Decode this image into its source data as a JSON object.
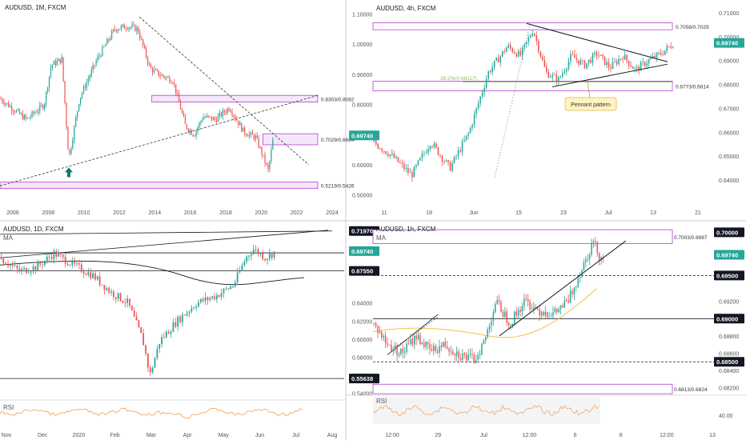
{
  "panels": {
    "monthly": {
      "title": "AUDUSD, 1M, FXCM"
    },
    "h4": {
      "title": "AUDUSD, 4h, FXCM"
    },
    "daily": {
      "title": "AUDUSD, 1D, FXCM",
      "ma_label": "MA",
      "rsi_label": "RSI"
    },
    "h1": {
      "title": "AUDUSD, 1h, FXCM",
      "ma_label": "MA",
      "rsi_label": "RSI"
    }
  },
  "colors": {
    "up": "#26a69a",
    "down": "#ef5350",
    "zone": "#b040d0",
    "zone_fill": "#f6e6fb",
    "price_badge": "#26a69a",
    "level_badge": "#131722",
    "fib": "#8bc34a",
    "ma_daily": "#131722",
    "ma_h1": "#f2c14e",
    "rsi": "#f39c4a",
    "axis_text": "#555555",
    "grid": "#eef0f3"
  },
  "chart_data": [
    {
      "type": "candlestick",
      "title": "AUDUSD, 1M, FXCM",
      "x_ticks": [
        "2006",
        "2008",
        "2010",
        "2012",
        "2014",
        "2016",
        "2018",
        "2020",
        "2022",
        "2024"
      ],
      "y_ticks": [
        "1.10000",
        "1.00000",
        "0.90000",
        "0.80000",
        "0.70000",
        "0.60000",
        "0.50000"
      ],
      "ylim": [
        0.47,
        1.12
      ],
      "zones": [
        {
          "label": "0.8303/0.8082",
          "low": 0.8082,
          "high": 0.8303,
          "x_from": 2013.6,
          "x_to": 2023.0
        },
        {
          "label": "0.7029/0.6664",
          "low": 0.6664,
          "high": 0.7029,
          "x_from": 2019.9,
          "x_to": 2023.0
        },
        {
          "label": "0.5219/0.5426",
          "low": 0.5219,
          "high": 0.5426,
          "x_from": 2005.0,
          "x_to": 2023.0
        }
      ],
      "trendlines": [
        {
          "style": "dashed",
          "from": [
            2005.0,
            0.53
          ],
          "to": [
            2023.0,
            0.83
          ]
        },
        {
          "style": "dashed",
          "from": [
            2012.9,
            1.09
          ],
          "to": [
            2022.5,
            0.6
          ]
        }
      ],
      "marker": {
        "shape": "up-arrow",
        "x": 2008.9,
        "y": 0.575
      },
      "current_price": "0.69740",
      "anchors": [
        [
          2005.0,
          0.82
        ],
        [
          2006.5,
          0.75
        ],
        [
          2007.5,
          0.8
        ],
        [
          2007.9,
          0.93
        ],
        [
          2008.5,
          0.95
        ],
        [
          2008.9,
          0.62
        ],
        [
          2009.5,
          0.82
        ],
        [
          2010.5,
          0.95
        ],
        [
          2011.5,
          1.05
        ],
        [
          2012.2,
          1.06
        ],
        [
          2012.8,
          1.05
        ],
        [
          2013.5,
          0.92
        ],
        [
          2014.0,
          0.9
        ],
        [
          2014.8,
          0.88
        ],
        [
          2015.5,
          0.73
        ],
        [
          2016.0,
          0.7
        ],
        [
          2016.5,
          0.76
        ],
        [
          2017.2,
          0.75
        ],
        [
          2018.0,
          0.79
        ],
        [
          2018.8,
          0.71
        ],
        [
          2019.5,
          0.69
        ],
        [
          2020.2,
          0.58
        ],
        [
          2020.5,
          0.6974
        ]
      ]
    },
    {
      "type": "candlestick",
      "title": "AUDUSD, 4h, FXCM",
      "x_ticks": [
        "11",
        "19",
        "Jun",
        "15",
        "23",
        "Jul",
        "13",
        "21"
      ],
      "y_ticks": [
        "0.71000",
        "0.70000",
        "0.69000",
        "0.68000",
        "0.67000",
        "0.66000",
        "0.65000",
        "0.64000"
      ],
      "ylim": [
        0.635,
        0.712
      ],
      "zones": [
        {
          "label": "0.7058/0.7029",
          "low": 0.7029,
          "high": 0.7058,
          "x_from": 0,
          "x_to": 53
        },
        {
          "label": "0.6773/0.6814",
          "low": 0.6773,
          "high": 0.6814,
          "x_from": 0,
          "x_to": 53
        }
      ],
      "fib_label": "38.2%(0.68117)",
      "fib_level": 0.68117,
      "pennant": {
        "upper": [
          [
            24,
            0.7055
          ],
          [
            46,
            0.6895
          ]
        ],
        "lower": [
          [
            28,
            0.679
          ],
          [
            46,
            0.6885
          ]
        ]
      },
      "callout": {
        "text": "Pennant pattern",
        "x": 32,
        "y": 0.677
      },
      "current_price": "0.69740",
      "anchors": [
        [
          0,
          0.656
        ],
        [
          3,
          0.65
        ],
        [
          6,
          0.642
        ],
        [
          9,
          0.656
        ],
        [
          12,
          0.645
        ],
        [
          15,
          0.66
        ],
        [
          18,
          0.685
        ],
        [
          21,
          0.696
        ],
        [
          23,
          0.692
        ],
        [
          25,
          0.703
        ],
        [
          27,
          0.685
        ],
        [
          29,
          0.682
        ],
        [
          31,
          0.692
        ],
        [
          33,
          0.688
        ],
        [
          35,
          0.693
        ],
        [
          37,
          0.687
        ],
        [
          39,
          0.692
        ],
        [
          41,
          0.686
        ],
        [
          43,
          0.69
        ],
        [
          45,
          0.693
        ],
        [
          47,
          0.6974
        ]
      ]
    },
    {
      "type": "candlestick",
      "title": "AUDUSD, 1D, FXCM",
      "x_ticks": [
        "Nov",
        "Dec",
        "2020",
        "Feb",
        "Mar",
        "Apr",
        "May",
        "Jun",
        "Jul",
        "Aug"
      ],
      "y_ticks": [
        "0.64000",
        "0.62000",
        "0.60000",
        "0.58000",
        "0.56000",
        "0.54000"
      ],
      "ylim": [
        0.537,
        0.723
      ],
      "price_badges": [
        {
          "label": "0.71970",
          "value": 0.7197,
          "kind": "level"
        },
        {
          "label": "0.69740",
          "value": 0.6974,
          "kind": "current"
        },
        {
          "label": "0.67550",
          "value": 0.6755,
          "kind": "level"
        },
        {
          "label": "0.55638",
          "value": 0.55638,
          "kind": "level"
        }
      ],
      "horizontal_levels": [
        0.7197,
        0.698,
        0.6755,
        0.55638
      ],
      "ma_label": "MA",
      "rsi_label": "RSI",
      "anchors": [
        [
          0,
          0.69
        ],
        [
          8,
          0.675
        ],
        [
          15,
          0.68
        ],
        [
          22,
          0.695
        ],
        [
          30,
          0.682
        ],
        [
          38,
          0.67
        ],
        [
          45,
          0.652
        ],
        [
          52,
          0.64
        ],
        [
          58,
          0.6
        ],
        [
          61,
          0.56
        ],
        [
          65,
          0.598
        ],
        [
          72,
          0.62
        ],
        [
          80,
          0.64
        ],
        [
          88,
          0.648
        ],
        [
          95,
          0.66
        ],
        [
          100,
          0.69
        ],
        [
          103,
          0.7
        ],
        [
          108,
          0.69
        ],
        [
          112,
          0.697
        ]
      ]
    },
    {
      "type": "candlestick",
      "title": "AUDUSD, 1h, FXCM",
      "x_ticks": [
        "12:00",
        "29",
        "Jul",
        "12:00",
        "6",
        "8",
        "12:00",
        "13"
      ],
      "y_ticks": [
        "0.69200",
        "0.68800",
        "0.68600",
        "0.68400",
        "0.68200",
        "40.00"
      ],
      "ylim": [
        0.6815,
        0.7005
      ],
      "zone_labels": [
        "0.7003/0.6987",
        "0.6813/0.6824"
      ],
      "zones": [
        {
          "label": "0.7003/0.6987",
          "low": 0.6987,
          "high": 0.7003,
          "x_from": 0,
          "x_to": 94
        },
        {
          "label": "0.6813/0.6824",
          "low": 0.6813,
          "high": 0.6824,
          "x_from": 0,
          "x_to": 94
        }
      ],
      "price_badges": [
        {
          "label": "0.70000",
          "value": 0.7,
          "kind": "level"
        },
        {
          "label": "0.69740",
          "value": 0.6974,
          "kind": "current"
        },
        {
          "label": "0.69500",
          "value": 0.695,
          "kind": "level"
        },
        {
          "label": "0.69000",
          "value": 0.69,
          "kind": "level"
        },
        {
          "label": "0.68500",
          "value": 0.685,
          "kind": "level"
        }
      ],
      "levels": [
        {
          "value": 0.695,
          "style": "dashed"
        },
        {
          "value": 0.69,
          "style": "solid"
        },
        {
          "value": 0.685,
          "style": "dashed"
        }
      ],
      "trendline": {
        "from": [
          35,
          0.688
        ],
        "to": [
          70,
          0.699
        ]
      },
      "ma_label": "MA",
      "rsi_label": "RSI",
      "rsi_tick": "40.00",
      "anchors": [
        [
          0,
          0.6895
        ],
        [
          4,
          0.687
        ],
        [
          8,
          0.686
        ],
        [
          12,
          0.688
        ],
        [
          16,
          0.6862
        ],
        [
          20,
          0.687
        ],
        [
          24,
          0.6858
        ],
        [
          28,
          0.6852
        ],
        [
          31,
          0.6875
        ],
        [
          34,
          0.692
        ],
        [
          38,
          0.6895
        ],
        [
          42,
          0.692
        ],
        [
          46,
          0.691
        ],
        [
          50,
          0.6905
        ],
        [
          54,
          0.692
        ],
        [
          58,
          0.696
        ],
        [
          61,
          0.699
        ],
        [
          63,
          0.697
        ],
        [
          64,
          0.6974
        ]
      ]
    }
  ]
}
